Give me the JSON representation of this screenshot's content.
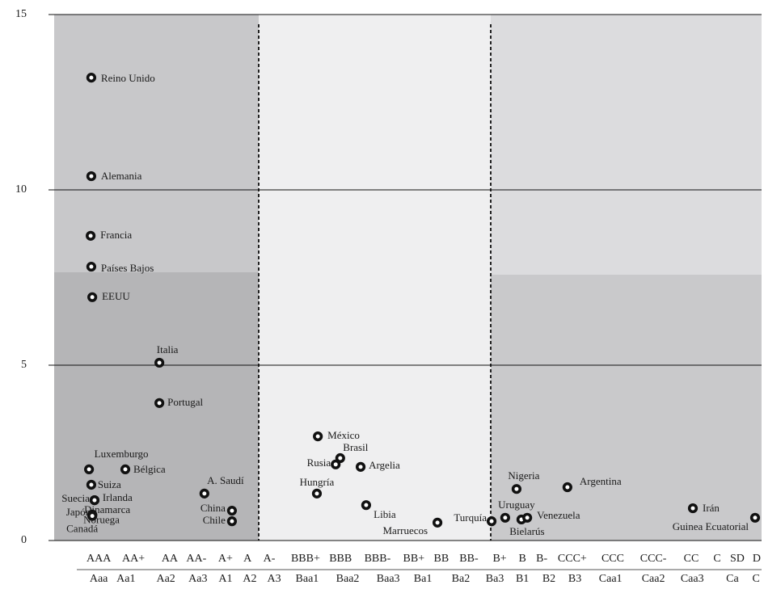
{
  "chart_data": {
    "type": "scatter",
    "xlim": [
      0,
      22
    ],
    "ylim": [
      0,
      15
    ],
    "yticks": [
      0,
      5,
      10,
      15
    ],
    "grid": true,
    "color": "#111111",
    "xticks": [
      {
        "value": 1.55,
        "label": "AAA"
      },
      {
        "value": 2.62,
        "label": "AA+"
      },
      {
        "value": 3.74,
        "label": "AA"
      },
      {
        "value": 4.56,
        "label": "AA-"
      },
      {
        "value": 5.46,
        "label": "A+"
      },
      {
        "value": 6.14,
        "label": "A"
      },
      {
        "value": 6.81,
        "label": "A-"
      },
      {
        "value": 7.93,
        "label": "BBB+"
      },
      {
        "value": 9.01,
        "label": "BBB"
      },
      {
        "value": 10.15,
        "label": "BBB-"
      },
      {
        "value": 11.27,
        "label": "BB+"
      },
      {
        "value": 12.12,
        "label": "BB"
      },
      {
        "value": 12.97,
        "label": "BB-"
      },
      {
        "value": 13.92,
        "label": "B+"
      },
      {
        "value": 14.62,
        "label": "B"
      },
      {
        "value": 15.22,
        "label": "B-"
      },
      {
        "value": 16.16,
        "label": "CCC+"
      },
      {
        "value": 17.41,
        "label": "CCC"
      },
      {
        "value": 18.66,
        "label": "CCC-"
      },
      {
        "value": 19.83,
        "label": "CC"
      },
      {
        "value": 20.63,
        "label": "C"
      },
      {
        "value": 21.25,
        "label": "SD"
      },
      {
        "value": 21.85,
        "label": "D"
      }
    ],
    "xticks2": [
      {
        "value": 1.55,
        "label": "Aaa"
      },
      {
        "value": 2.39,
        "label": "Aa1"
      },
      {
        "value": 3.62,
        "label": "Aa2"
      },
      {
        "value": 4.61,
        "label": "Aa3"
      },
      {
        "value": 5.46,
        "label": "A1"
      },
      {
        "value": 6.21,
        "label": "A2"
      },
      {
        "value": 6.96,
        "label": "A3"
      },
      {
        "value": 7.98,
        "label": "Baa1"
      },
      {
        "value": 9.23,
        "label": "Baa2"
      },
      {
        "value": 10.48,
        "label": "Baa3"
      },
      {
        "value": 11.55,
        "label": "Ba1"
      },
      {
        "value": 12.72,
        "label": "Ba2"
      },
      {
        "value": 13.77,
        "label": "Ba3"
      },
      {
        "value": 14.62,
        "label": "B1"
      },
      {
        "value": 15.44,
        "label": "B2"
      },
      {
        "value": 16.24,
        "label": "B3"
      },
      {
        "value": 17.34,
        "label": "Caa1"
      },
      {
        "value": 18.66,
        "label": "Caa2"
      },
      {
        "value": 19.86,
        "label": "Caa3"
      },
      {
        "value": 21.1,
        "label": "Ca"
      },
      {
        "value": 21.83,
        "label": "C"
      }
    ],
    "labels": [
      "Reino Unido",
      "Alemania",
      "Francia",
      "Países Bajos",
      "EEUU",
      "Italia",
      "Portugal",
      "Luxemburgo",
      "Bélgica",
      "Suiza",
      "Suecia",
      "Irlanda",
      "Japón",
      "Dinamarca",
      "Noruega",
      "Canadá",
      "A. Saudí",
      "China",
      "Chile",
      "México",
      "Brasil",
      "Rusia",
      "Argelia",
      "Hungría",
      "Libia",
      "Marruecos",
      "Turquía",
      "Uruguay",
      "Bielarús",
      "Venezuela",
      "Nigeria",
      "Argentina",
      "Irán",
      "Guinea Ecuatorial"
    ],
    "x": [
      1.32,
      1.32,
      1.3,
      1.32,
      1.35,
      3.42,
      3.42,
      1.25,
      2.37,
      1.32,
      1.42,
      1.42,
      1.35,
      1.35,
      1.35,
      1.35,
      4.81,
      5.66,
      5.66,
      8.31,
      9.0,
      8.86,
      9.63,
      8.28,
      9.8,
      12.0,
      13.67,
      14.09,
      14.59,
      14.77,
      14.44,
      16.01,
      19.88,
      21.8
    ],
    "values": [
      13.2,
      10.39,
      8.69,
      7.81,
      6.94,
      5.07,
      3.92,
      2.03,
      2.03,
      1.59,
      1.15,
      1.15,
      0.74,
      0.74,
      0.72,
      0.7,
      1.34,
      0.85,
      0.55,
      2.97,
      2.35,
      2.17,
      2.1,
      1.34,
      1.01,
      0.51,
      0.55,
      0.65,
      0.6,
      0.65,
      1.47,
      1.52,
      0.92,
      0.65
    ]
  }
}
